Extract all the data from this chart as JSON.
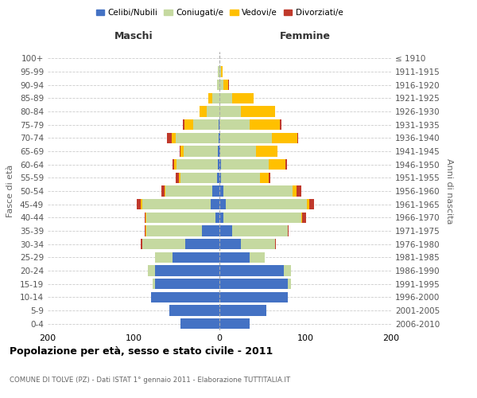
{
  "age_groups": [
    "0-4",
    "5-9",
    "10-14",
    "15-19",
    "20-24",
    "25-29",
    "30-34",
    "35-39",
    "40-44",
    "45-49",
    "50-54",
    "55-59",
    "60-64",
    "65-69",
    "70-74",
    "75-79",
    "80-84",
    "85-89",
    "90-94",
    "95-99",
    "100+"
  ],
  "birth_years": [
    "2006-2010",
    "2001-2005",
    "1996-2000",
    "1991-1995",
    "1986-1990",
    "1981-1985",
    "1976-1980",
    "1971-1975",
    "1966-1970",
    "1961-1965",
    "1956-1960",
    "1951-1955",
    "1946-1950",
    "1941-1945",
    "1936-1940",
    "1931-1935",
    "1926-1930",
    "1921-1925",
    "1916-1920",
    "1911-1915",
    "≤ 1910"
  ],
  "male": {
    "celibi": [
      45,
      58,
      80,
      75,
      75,
      55,
      40,
      20,
      5,
      10,
      8,
      3,
      2,
      2,
      1,
      1,
      0,
      0,
      0,
      0,
      0
    ],
    "coniugati": [
      0,
      0,
      0,
      3,
      8,
      20,
      50,
      65,
      80,
      80,
      55,
      42,
      48,
      40,
      50,
      30,
      15,
      8,
      3,
      2,
      0
    ],
    "vedovi": [
      0,
      0,
      0,
      0,
      0,
      0,
      0,
      1,
      1,
      2,
      1,
      2,
      3,
      3,
      5,
      10,
      8,
      5,
      0,
      0,
      0
    ],
    "divorziati": [
      0,
      0,
      0,
      0,
      0,
      0,
      2,
      1,
      1,
      4,
      4,
      4,
      2,
      1,
      5,
      2,
      0,
      0,
      0,
      0,
      0
    ]
  },
  "female": {
    "nubili": [
      35,
      55,
      80,
      80,
      75,
      35,
      25,
      15,
      5,
      7,
      5,
      2,
      2,
      1,
      1,
      0,
      0,
      0,
      0,
      0,
      0
    ],
    "coniugate": [
      0,
      0,
      0,
      3,
      8,
      18,
      40,
      65,
      90,
      95,
      80,
      45,
      55,
      42,
      60,
      35,
      25,
      15,
      5,
      2,
      0
    ],
    "vedove": [
      0,
      0,
      0,
      0,
      0,
      0,
      0,
      0,
      1,
      3,
      5,
      10,
      20,
      25,
      30,
      35,
      40,
      25,
      5,
      2,
      0
    ],
    "divorziate": [
      0,
      0,
      0,
      0,
      0,
      0,
      1,
      1,
      5,
      5,
      5,
      2,
      2,
      0,
      1,
      2,
      0,
      0,
      1,
      0,
      0
    ]
  },
  "colors": {
    "celibi": "#4472c4",
    "coniugati": "#c5d9a0",
    "vedovi": "#ffc000",
    "divorziati": "#c0392b"
  },
  "title": "Popolazione per età, sesso e stato civile - 2011",
  "subtitle": "COMUNE DI TOLVE (PZ) - Dati ISTAT 1° gennaio 2011 - Elaborazione TUTTITALIA.IT",
  "xlabel_left": "Maschi",
  "xlabel_right": "Femmine",
  "ylabel_left": "Fasce di età",
  "ylabel_right": "Anni di nascita",
  "xlim": 200,
  "legend_labels": [
    "Celibi/Nubili",
    "Coniugati/e",
    "Vedovi/e",
    "Divorziati/e"
  ],
  "bg_color": "#ffffff",
  "bar_height": 0.8
}
